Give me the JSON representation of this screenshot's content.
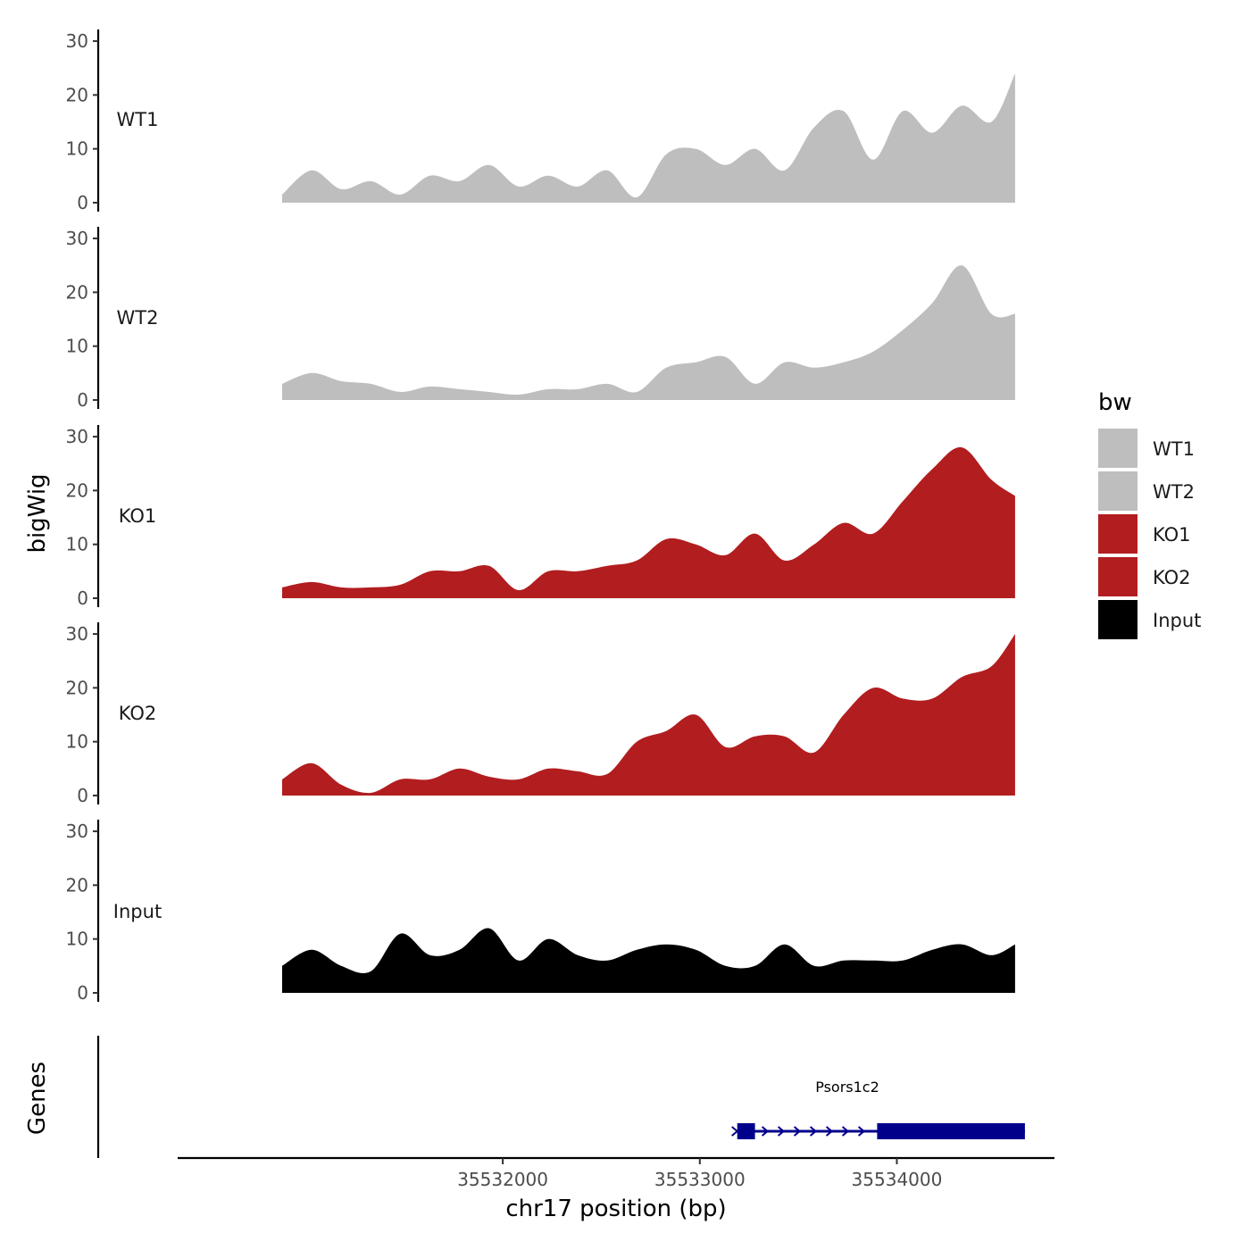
{
  "chart_data": {
    "type": "area",
    "chromosome": "chr17",
    "xlabel": "chr17 position (bp)",
    "ylabel": "bigWig",
    "genes_panel_label": "Genes",
    "xlim": [
      35530350,
      35534800
    ],
    "x_ticks": [
      35532000,
      35533000,
      35534000
    ],
    "x_tick_labels": [
      "35532000",
      "35533000",
      "35534000"
    ],
    "ylim": [
      0,
      32
    ],
    "y_ticks": [
      0,
      10,
      20,
      30
    ],
    "y_tick_labels": [
      "0",
      "10",
      "20",
      "30"
    ],
    "x": [
      35530880,
      35531030,
      35531180,
      35531330,
      35531480,
      35531630,
      35531780,
      35531930,
      35532080,
      35532230,
      35532380,
      35532530,
      35532680,
      35532830,
      35532980,
      35533130,
      35533280,
      35533430,
      35533580,
      35533730,
      35533880,
      35534030,
      35534180,
      35534330,
      35534480,
      35534600
    ],
    "series": [
      {
        "name": "WT1",
        "color": "#bebebe",
        "values": [
          1.5,
          6,
          2.5,
          4,
          1.5,
          5,
          4,
          7,
          3,
          5,
          3,
          6,
          1,
          9,
          10,
          7,
          10,
          6,
          14,
          17,
          8,
          17,
          13,
          18,
          15,
          24
        ]
      },
      {
        "name": "WT2",
        "color": "#bebebe",
        "values": [
          3,
          5,
          3.5,
          3,
          1.5,
          2.5,
          2,
          1.5,
          1,
          2,
          2,
          3,
          1.5,
          6,
          7,
          8,
          3,
          7,
          6,
          7,
          9,
          13,
          18,
          25,
          16,
          16
        ]
      },
      {
        "name": "KO1",
        "color": "#b21d1f",
        "values": [
          2,
          3,
          2,
          2,
          2.5,
          5,
          5,
          6,
          1.5,
          5,
          5,
          6,
          7,
          11,
          10,
          8,
          12,
          7,
          10,
          14,
          12,
          18,
          24,
          28,
          22,
          19
        ]
      },
      {
        "name": "KO2",
        "color": "#b21d1f",
        "values": [
          3,
          6,
          2,
          0.5,
          3,
          3,
          5,
          3.5,
          3,
          5,
          4.5,
          4,
          10,
          12,
          15,
          9,
          11,
          11,
          8,
          15,
          20,
          18,
          18,
          22,
          24,
          30
        ]
      },
      {
        "name": "Input",
        "color": "#000000",
        "values": [
          5,
          8,
          5,
          4,
          11,
          7,
          8,
          12,
          6,
          10,
          7,
          6,
          8,
          9,
          8,
          5,
          5,
          9,
          5,
          6,
          6,
          6,
          8,
          9,
          7,
          9
        ]
      }
    ],
    "track_labels": [
      "WT1",
      "WT2",
      "KO1",
      "KO2",
      "Input"
    ],
    "genes": [
      {
        "name": "Psors1c2",
        "start": 35533190,
        "end": 35534650,
        "strand": "+",
        "color": "#00008b",
        "exons": [
          [
            35533190,
            35533280
          ],
          [
            35533900,
            35534650
          ]
        ]
      }
    ],
    "legend": {
      "title": "bw",
      "placement": "right",
      "items": [
        {
          "label": "WT1",
          "color": "#bebebe"
        },
        {
          "label": "WT2",
          "color": "#bebebe"
        },
        {
          "label": "KO1",
          "color": "#b21d1f"
        },
        {
          "label": "KO2",
          "color": "#b21d1f"
        },
        {
          "label": "Input",
          "color": "#000000"
        }
      ]
    }
  }
}
